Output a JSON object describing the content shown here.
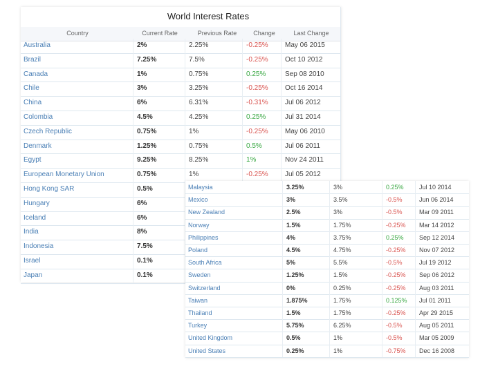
{
  "table": {
    "title": "World Interest Rates",
    "headers": [
      "Country",
      "Current Rate",
      "Previous Rate",
      "Change",
      "Last Change"
    ],
    "rows_main": [
      {
        "country": "Australia",
        "current": "2%",
        "previous": "2.25%",
        "change": "-0.25%",
        "dir": "neg",
        "date": "May 06 2015"
      },
      {
        "country": "Brazil",
        "current": "7.25%",
        "previous": "7.5%",
        "change": "-0.25%",
        "dir": "neg",
        "date": "Oct 10 2012"
      },
      {
        "country": "Canada",
        "current": "1%",
        "previous": "0.75%",
        "change": "0.25%",
        "dir": "pos",
        "date": "Sep 08 2010"
      },
      {
        "country": "Chile",
        "current": "3%",
        "previous": "3.25%",
        "change": "-0.25%",
        "dir": "neg",
        "date": "Oct 16 2014"
      },
      {
        "country": "China",
        "current": "6%",
        "previous": "6.31%",
        "change": "-0.31%",
        "dir": "neg",
        "date": "Jul 06 2012"
      },
      {
        "country": "Colombia",
        "current": "4.5%",
        "previous": "4.25%",
        "change": "0.25%",
        "dir": "pos",
        "date": "Jul 31 2014"
      },
      {
        "country": "Czech Republic",
        "current": "0.75%",
        "previous": "1%",
        "change": "-0.25%",
        "dir": "neg",
        "date": "May 06 2010"
      },
      {
        "country": "Denmark",
        "current": "1.25%",
        "previous": "0.75%",
        "change": "0.5%",
        "dir": "pos",
        "date": "Jul 06 2011"
      },
      {
        "country": "Egypt",
        "current": "9.25%",
        "previous": "8.25%",
        "change": "1%",
        "dir": "pos",
        "date": "Nov 24 2011"
      },
      {
        "country": "European Monetary Union",
        "current": "0.75%",
        "previous": "1%",
        "change": "-0.25%",
        "dir": "neg",
        "date": "Jul 05 2012"
      },
      {
        "country": "Hong Kong SAR",
        "current": "0.5%"
      },
      {
        "country": "Hungary",
        "current": "6%"
      },
      {
        "country": "Iceland",
        "current": "6%"
      },
      {
        "country": "India",
        "current": "8%"
      },
      {
        "country": "Indonesia",
        "current": "7.5%"
      },
      {
        "country": "Israel",
        "current": "0.1%"
      },
      {
        "country": "Japan",
        "current": "0.1%"
      }
    ],
    "rows_overlay": [
      {
        "country": "Malaysia",
        "current": "3.25%",
        "previous": "3%",
        "change": "0.25%",
        "dir": "pos",
        "date": "Jul 10 2014"
      },
      {
        "country": "Mexico",
        "current": "3%",
        "previous": "3.5%",
        "change": "-0.5%",
        "dir": "neg",
        "date": "Jun 06 2014"
      },
      {
        "country": "New Zealand",
        "current": "2.5%",
        "previous": "3%",
        "change": "-0.5%",
        "dir": "neg",
        "date": "Mar 09 2011"
      },
      {
        "country": "Norway",
        "current": "1.5%",
        "previous": "1.75%",
        "change": "-0.25%",
        "dir": "neg",
        "date": "Mar 14 2012"
      },
      {
        "country": "Philippines",
        "current": "4%",
        "previous": "3.75%",
        "change": "0.25%",
        "dir": "pos",
        "date": "Sep 12 2014"
      },
      {
        "country": "Poland",
        "current": "4.5%",
        "previous": "4.75%",
        "change": "-0.25%",
        "dir": "neg",
        "date": "Nov 07 2012"
      },
      {
        "country": "South Africa",
        "current": "5%",
        "previous": "5.5%",
        "change": "-0.5%",
        "dir": "neg",
        "date": "Jul 19 2012"
      },
      {
        "country": "Sweden",
        "current": "1.25%",
        "previous": "1.5%",
        "change": "-0.25%",
        "dir": "neg",
        "date": "Sep 06 2012"
      },
      {
        "country": "Switzerland",
        "current": "0%",
        "previous": "0.25%",
        "change": "-0.25%",
        "dir": "neg",
        "date": "Aug 03 2011"
      },
      {
        "country": "Taiwan",
        "current": "1.875%",
        "previous": "1.75%",
        "change": "0.125%",
        "dir": "pos",
        "date": "Jul 01 2011"
      },
      {
        "country": "Thailand",
        "current": "1.5%",
        "previous": "1.75%",
        "change": "-0.25%",
        "dir": "neg",
        "date": "Apr 29 2015"
      },
      {
        "country": "Turkey",
        "current": "5.75%",
        "previous": "6.25%",
        "change": "-0.5%",
        "dir": "neg",
        "date": "Aug 05 2011"
      },
      {
        "country": "United Kingdom",
        "current": "0.5%",
        "previous": "1%",
        "change": "-0.5%",
        "dir": "neg",
        "date": "Mar 05 2009"
      },
      {
        "country": "United States",
        "current": "0.25%",
        "previous": "1%",
        "change": "-0.75%",
        "dir": "neg",
        "date": "Dec 16 2008"
      }
    ]
  },
  "colors": {
    "link": "#4a7fb5",
    "negative": "#d9534f",
    "positive": "#3aa844",
    "border": "#dde7ef",
    "header_bg": "#f5f7fa"
  }
}
